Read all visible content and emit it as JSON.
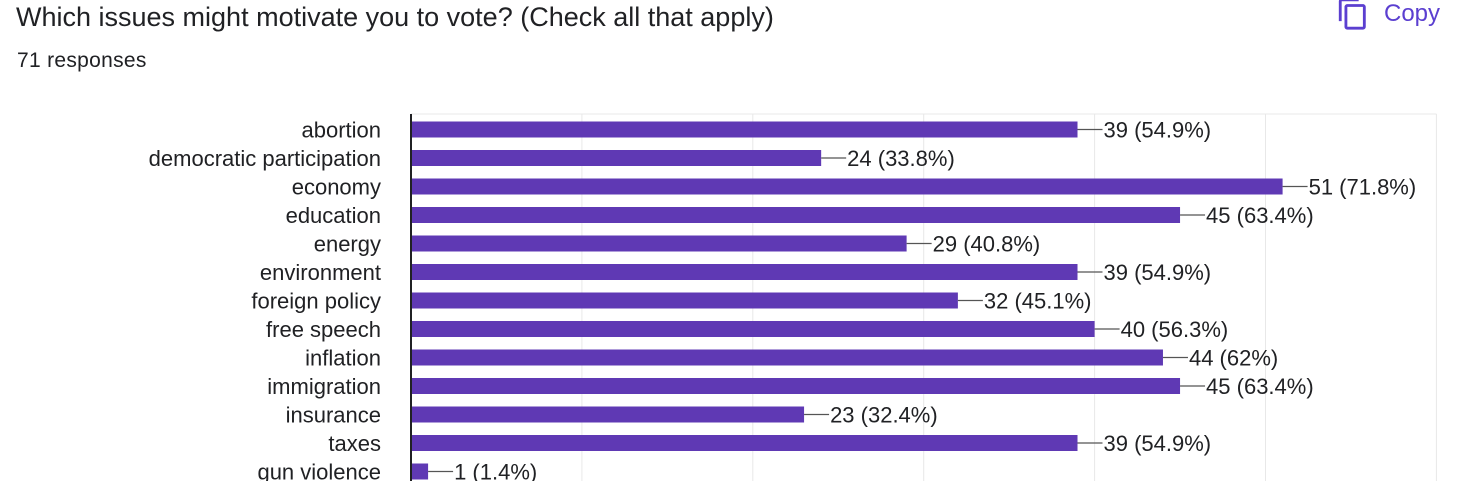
{
  "header": {
    "title": "Which issues might motivate you to vote? (Check all that apply)",
    "responses": "71 responses",
    "copy_label": "Copy",
    "copy_icon": "copy-icon"
  },
  "colors": {
    "bar": "#5f39b4",
    "accent": "#5b3fd0",
    "grid": "#e8e8e8",
    "axis": "#202124",
    "text": "#202124"
  },
  "chart_data": {
    "type": "bar",
    "orientation": "horizontal",
    "categories": [
      "abortion",
      "democratic participation",
      "economy",
      "education",
      "energy",
      "environment",
      "foreign policy",
      "free speech",
      "inflation",
      "immigration",
      "insurance",
      "taxes",
      "gun violence"
    ],
    "values": [
      39,
      24,
      51,
      45,
      29,
      39,
      32,
      40,
      44,
      45,
      23,
      39,
      1
    ],
    "labels": [
      "39 (54.9%)",
      "24 (33.8%)",
      "51 (71.8%)",
      "45 (63.4%)",
      "29 (40.8%)",
      "39 (54.9%)",
      "32 (45.1%)",
      "40 (56.3%)",
      "44 (62%)",
      "45 (63.4%)",
      "23 (32.4%)",
      "39 (54.9%)",
      "1 (1.4%)"
    ],
    "xlim": [
      0,
      60
    ],
    "grid": true,
    "legend": "none",
    "xlabel": "",
    "ylabel": ""
  }
}
